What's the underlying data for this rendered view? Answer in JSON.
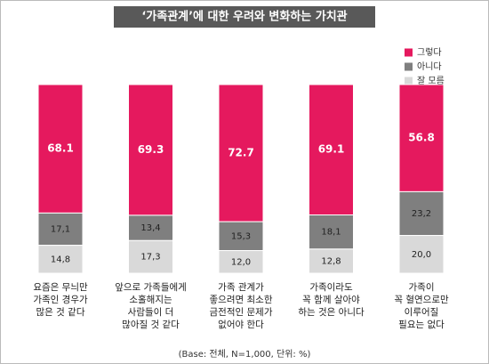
{
  "chart_data": {
    "type": "stacked-bar",
    "title": "‘가족관계’에 대한 우려와 변화하는 가치관",
    "footnote": "(Base: 전체, N=1,000, 단위: %)",
    "categories": [
      [
        "요즘은 무늬만",
        "가족인 경우가",
        "많은 것 같다"
      ],
      [
        "앞으로 가족들에게",
        "소홀해지는",
        "사람들이 더",
        "많아질 것 같다"
      ],
      [
        "가족 관계가",
        "좋으려면 최소한",
        "금전적인 문제가",
        "없어야 한다"
      ],
      [
        "가족이라도",
        "꼭 함께 살아야",
        "하는 것은 아니다"
      ],
      [
        "가족이",
        "꼭 혈연으로만",
        "이루어질",
        "필요는 없다"
      ]
    ],
    "series": [
      {
        "name": "그렇다",
        "color": "#e5195e",
        "values": [
          68.1,
          69.3,
          72.7,
          69.1,
          56.8
        ]
      },
      {
        "name": "아니다",
        "color": "#7f7f7f",
        "values": [
          17.1,
          13.4,
          15.3,
          18.1,
          23.2
        ],
        "value_labels": [
          "17,1",
          "13,4",
          "15,3",
          "18,1",
          "23,2"
        ]
      },
      {
        "name": "잘 모름",
        "color": "#d9d9d9",
        "values": [
          14.8,
          17.3,
          12,
          12.8,
          20
        ],
        "value_labels": [
          "14,8",
          "17,3",
          "12,0",
          "12,8",
          "20,0"
        ]
      }
    ],
    "legend": "top-right"
  }
}
